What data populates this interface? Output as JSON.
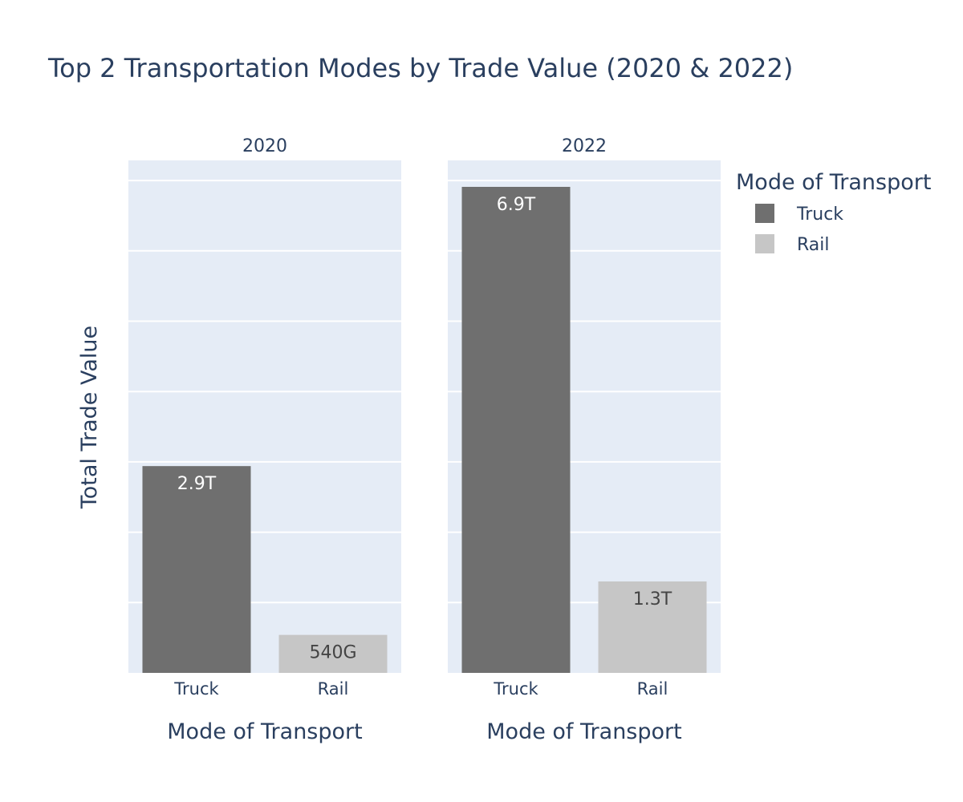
{
  "chart_data": {
    "type": "bar",
    "title": "Top 2 Transportation Modes by Trade Value (2020 & 2022)",
    "ylabel": "Total Trade Value",
    "ylim": [
      0,
      7000000000000
    ],
    "grid": true,
    "legend": {
      "title": "Mode of Transport",
      "placement": "top-right",
      "entries": [
        {
          "name": "Truck",
          "color": "#6f6f6f"
        },
        {
          "name": "Rail",
          "color": "#c6c6c6"
        }
      ]
    },
    "panels": [
      {
        "subtitle": "2020",
        "xlabel": "Mode of Transport",
        "categories": [
          "Truck",
          "Rail"
        ],
        "values": [
          2940000000000,
          540000000000
        ],
        "labels": [
          "2.9T",
          "540G"
        ]
      },
      {
        "subtitle": "2022",
        "xlabel": "Mode of Transport",
        "categories": [
          "Truck",
          "Rail"
        ],
        "values": [
          6910000000000,
          1300000000000
        ],
        "labels": [
          "6.9T",
          "1.3T"
        ]
      }
    ],
    "colors": {
      "Truck": "#6f6f6f",
      "Rail": "#c6c6c6",
      "Truck_label": "#ffffff",
      "Rail_label": "#444444"
    }
  }
}
